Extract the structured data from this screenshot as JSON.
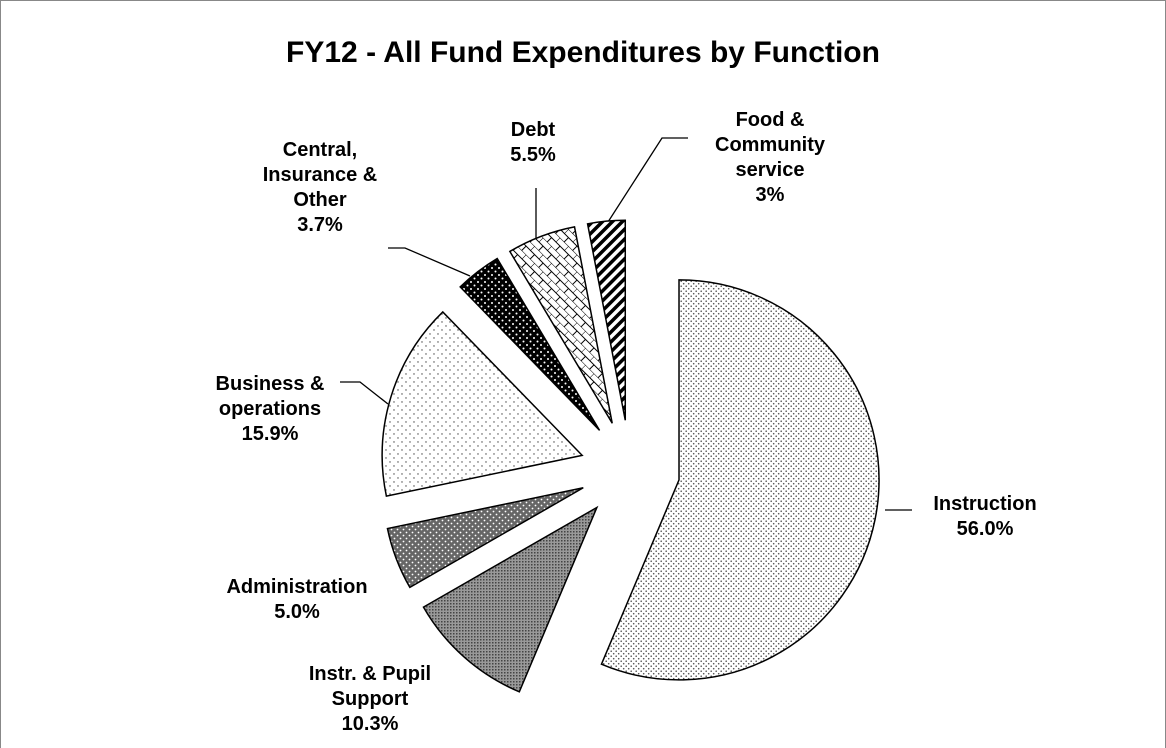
{
  "chart_data": {
    "type": "pie",
    "title": "FY12 - All Fund Expenditures by Function",
    "categories": [
      "Instruction",
      "Instr. & Pupil Support",
      "Administration",
      "Business & operations",
      "Central, Insurance & Other",
      "Debt",
      "Food & Community service"
    ],
    "values": [
      56.0,
      10.3,
      5.0,
      15.9,
      3.7,
      5.5,
      3
    ],
    "value_labels": [
      "56.0%",
      "10.3%",
      "5.0%",
      "15.9%",
      "3.7%",
      "5.5%",
      "3%"
    ]
  }
}
